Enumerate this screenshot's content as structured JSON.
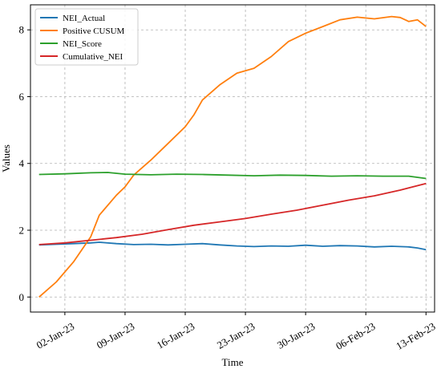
{
  "chart_data": {
    "type": "line",
    "xlabel": "Time",
    "ylabel": "Values",
    "ylim": [
      -0.45,
      8.75
    ],
    "xlim": [
      "2022-12-29",
      "2023-02-14"
    ],
    "x_ticks": [
      {
        "date": "2023-01-02",
        "label": "02-Jan-23"
      },
      {
        "date": "2023-01-09",
        "label": "09-Jan-23"
      },
      {
        "date": "2023-01-16",
        "label": "16-Jan-23"
      },
      {
        "date": "2023-01-23",
        "label": "23-Jan-23"
      },
      {
        "date": "2023-01-30",
        "label": "30-Jan-23"
      },
      {
        "date": "2023-02-06",
        "label": "06-Feb-23"
      },
      {
        "date": "2023-02-13",
        "label": "13-Feb-23"
      }
    ],
    "y_ticks": [
      0,
      2,
      4,
      6,
      8
    ],
    "grid": true,
    "legend_position": "top-left",
    "series": [
      {
        "name": "NEI_Actual",
        "color": "#1f77b4",
        "points": [
          [
            "2022-12-30",
            1.56
          ],
          [
            "2023-01-01",
            1.58
          ],
          [
            "2023-01-03",
            1.6
          ],
          [
            "2023-01-05",
            1.62
          ],
          [
            "2023-01-06",
            1.64
          ],
          [
            "2023-01-08",
            1.6
          ],
          [
            "2023-01-10",
            1.57
          ],
          [
            "2023-01-12",
            1.58
          ],
          [
            "2023-01-14",
            1.56
          ],
          [
            "2023-01-16",
            1.58
          ],
          [
            "2023-01-18",
            1.6
          ],
          [
            "2023-01-20",
            1.56
          ],
          [
            "2023-01-22",
            1.53
          ],
          [
            "2023-01-24",
            1.51
          ],
          [
            "2023-01-26",
            1.53
          ],
          [
            "2023-01-28",
            1.52
          ],
          [
            "2023-01-30",
            1.55
          ],
          [
            "2023-02-01",
            1.52
          ],
          [
            "2023-02-03",
            1.54
          ],
          [
            "2023-02-05",
            1.53
          ],
          [
            "2023-02-07",
            1.5
          ],
          [
            "2023-02-09",
            1.52
          ],
          [
            "2023-02-11",
            1.5
          ],
          [
            "2023-02-12",
            1.47
          ],
          [
            "2023-02-13",
            1.42
          ]
        ]
      },
      {
        "name": "Positive CUSUM",
        "color": "#ff7f0e",
        "points": [
          [
            "2022-12-30",
            0.0
          ],
          [
            "2023-01-01",
            0.45
          ],
          [
            "2023-01-03",
            1.05
          ],
          [
            "2023-01-05",
            1.8
          ],
          [
            "2023-01-06",
            2.45
          ],
          [
            "2023-01-08",
            3.05
          ],
          [
            "2023-01-09",
            3.3
          ],
          [
            "2023-01-10",
            3.65
          ],
          [
            "2023-01-12",
            4.1
          ],
          [
            "2023-01-14",
            4.6
          ],
          [
            "2023-01-16",
            5.1
          ],
          [
            "2023-01-17",
            5.45
          ],
          [
            "2023-01-18",
            5.9
          ],
          [
            "2023-01-20",
            6.35
          ],
          [
            "2023-01-22",
            6.7
          ],
          [
            "2023-01-24",
            6.85
          ],
          [
            "2023-01-26",
            7.2
          ],
          [
            "2023-01-28",
            7.65
          ],
          [
            "2023-01-30",
            7.9
          ],
          [
            "2023-02-01",
            8.1
          ],
          [
            "2023-02-03",
            8.3
          ],
          [
            "2023-02-05",
            8.38
          ],
          [
            "2023-02-07",
            8.33
          ],
          [
            "2023-02-09",
            8.4
          ],
          [
            "2023-02-10",
            8.37
          ],
          [
            "2023-02-11",
            8.25
          ],
          [
            "2023-02-12",
            8.3
          ],
          [
            "2023-02-13",
            8.1
          ]
        ]
      },
      {
        "name": "NEI_Score",
        "color": "#2ca02c",
        "points": [
          [
            "2022-12-30",
            3.67
          ],
          [
            "2023-01-02",
            3.69
          ],
          [
            "2023-01-05",
            3.72
          ],
          [
            "2023-01-07",
            3.73
          ],
          [
            "2023-01-09",
            3.68
          ],
          [
            "2023-01-12",
            3.66
          ],
          [
            "2023-01-15",
            3.68
          ],
          [
            "2023-01-18",
            3.67
          ],
          [
            "2023-01-21",
            3.65
          ],
          [
            "2023-01-24",
            3.63
          ],
          [
            "2023-01-27",
            3.65
          ],
          [
            "2023-01-30",
            3.64
          ],
          [
            "2023-02-02",
            3.62
          ],
          [
            "2023-02-05",
            3.63
          ],
          [
            "2023-02-08",
            3.62
          ],
          [
            "2023-02-11",
            3.62
          ],
          [
            "2023-02-13",
            3.55
          ]
        ]
      },
      {
        "name": "Cumulative_NEI",
        "color": "#d62728",
        "points": [
          [
            "2022-12-30",
            1.57
          ],
          [
            "2023-01-02",
            1.62
          ],
          [
            "2023-01-05",
            1.7
          ],
          [
            "2023-01-08",
            1.78
          ],
          [
            "2023-01-11",
            1.88
          ],
          [
            "2023-01-14",
            2.02
          ],
          [
            "2023-01-17",
            2.15
          ],
          [
            "2023-01-20",
            2.25
          ],
          [
            "2023-01-23",
            2.35
          ],
          [
            "2023-01-26",
            2.48
          ],
          [
            "2023-01-29",
            2.6
          ],
          [
            "2023-02-01",
            2.75
          ],
          [
            "2023-02-04",
            2.9
          ],
          [
            "2023-02-07",
            3.03
          ],
          [
            "2023-02-10",
            3.2
          ],
          [
            "2023-02-13",
            3.4
          ]
        ]
      }
    ]
  }
}
